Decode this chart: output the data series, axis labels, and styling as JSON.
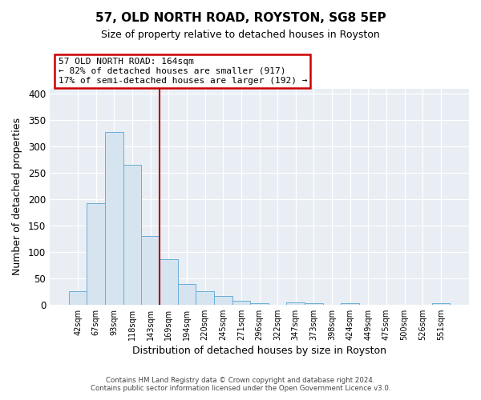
{
  "title": "57, OLD NORTH ROAD, ROYSTON, SG8 5EP",
  "subtitle": "Size of property relative to detached houses in Royston",
  "xlabel": "Distribution of detached houses by size in Royston",
  "ylabel": "Number of detached properties",
  "bar_labels": [
    "42sqm",
    "67sqm",
    "93sqm",
    "118sqm",
    "143sqm",
    "169sqm",
    "194sqm",
    "220sqm",
    "245sqm",
    "271sqm",
    "296sqm",
    "322sqm",
    "347sqm",
    "373sqm",
    "398sqm",
    "424sqm",
    "449sqm",
    "475sqm",
    "500sqm",
    "526sqm",
    "551sqm"
  ],
  "bar_values": [
    25,
    193,
    328,
    265,
    130,
    86,
    39,
    26,
    16,
    8,
    3,
    0,
    5,
    3,
    0,
    3,
    0,
    0,
    0,
    0,
    3
  ],
  "bar_color": "#d6e4f0",
  "bar_edge_color": "#6aaed6",
  "ylim": [
    0,
    410
  ],
  "yticks": [
    0,
    50,
    100,
    150,
    200,
    250,
    300,
    350,
    400
  ],
  "vline_position": 4.5,
  "vline_color": "#aa0000",
  "annotation_title": "57 OLD NORTH ROAD: 164sqm",
  "annotation_line1": "← 82% of detached houses are smaller (917)",
  "annotation_line2": "17% of semi-detached houses are larger (192) →",
  "annotation_box_color": "#cc0000",
  "footer_line1": "Contains HM Land Registry data © Crown copyright and database right 2024.",
  "footer_line2": "Contains public sector information licensed under the Open Government Licence v3.0.",
  "background_color": "#ffffff",
  "plot_bg_color": "#e8eef4"
}
